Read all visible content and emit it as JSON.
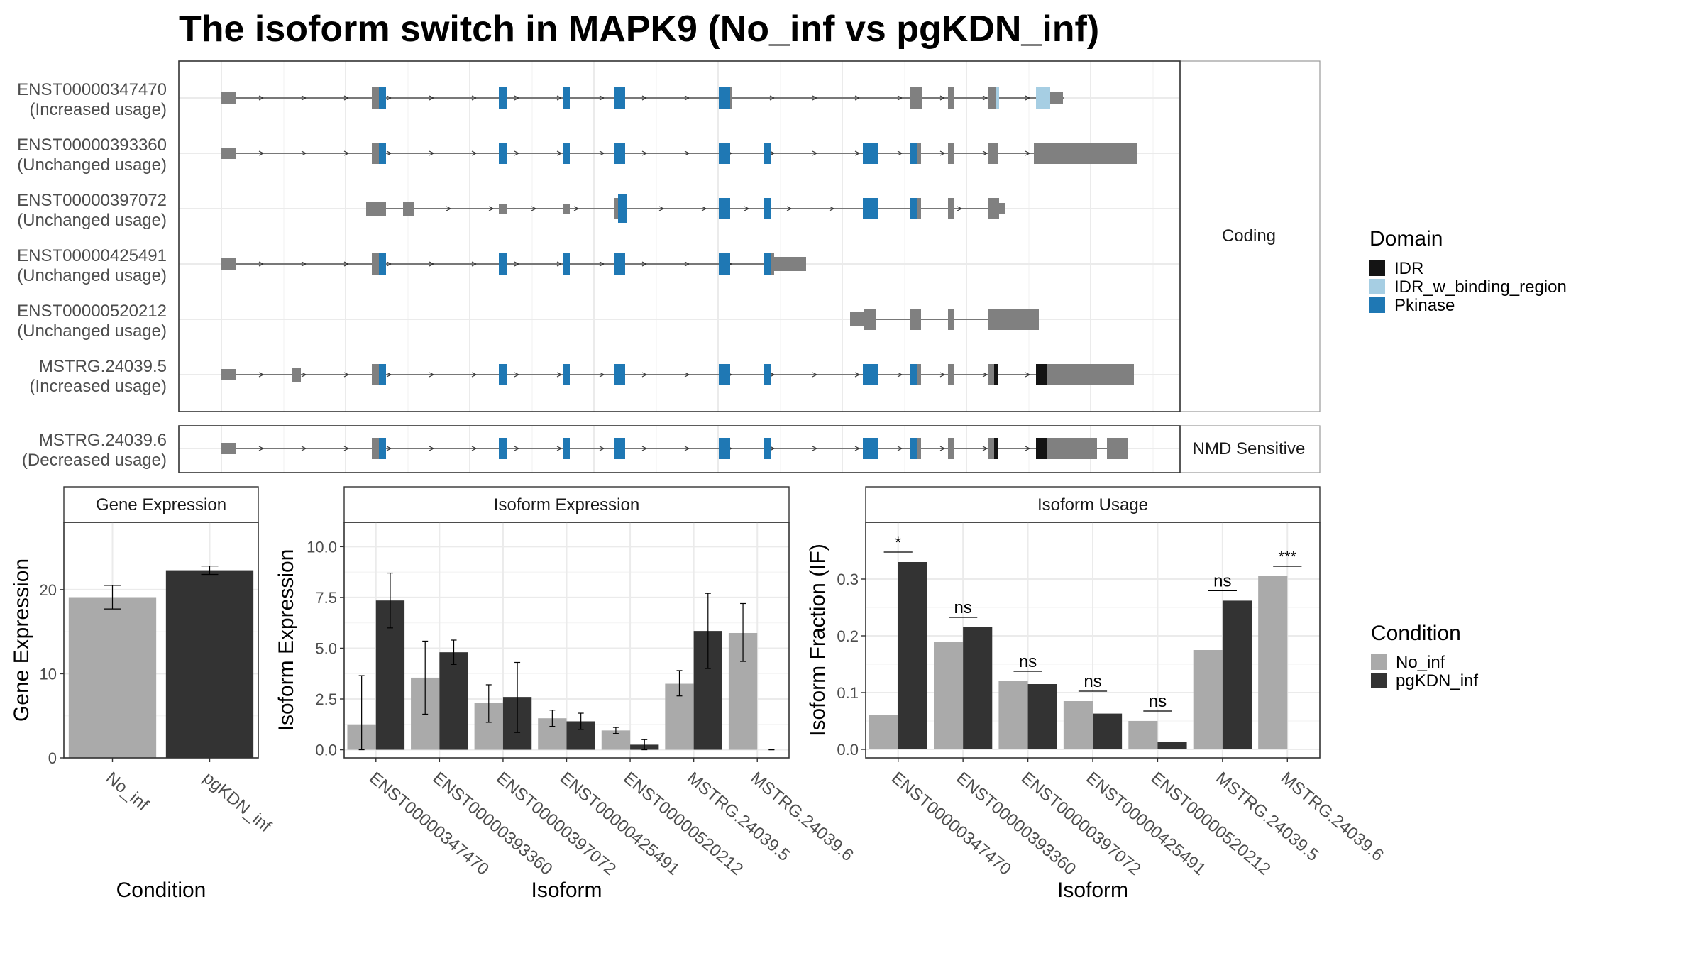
{
  "title": "The isoform switch in MAPK9 (No_inf vs pgKDN_inf)",
  "colors": {
    "grey_exon": "#808080",
    "pkinase": "#1F78B4",
    "idr_binding": "#A6CEE3",
    "idr": "#141414",
    "no_inf": "#AAAAAA",
    "pgkdn_inf": "#333333",
    "grid": "#EBEBEB",
    "panel_border": "#333333",
    "strip_bg": "#FFFFFF"
  },
  "structure": {
    "facets": [
      "Coding",
      "NMD Sensitive"
    ],
    "domain_legend_title": "Domain",
    "domains": [
      {
        "name": "IDR",
        "color": "#141414"
      },
      {
        "name": "IDR_w_binding_region",
        "color": "#A6CEE3"
      },
      {
        "name": "Pkinase",
        "color": "#1F78B4"
      }
    ],
    "isoforms": [
      {
        "id": "ENST00000347470",
        "status": "(Increased usage)",
        "facet": 0
      },
      {
        "id": "ENST00000393360",
        "status": "(Unchanged usage)",
        "facet": 0
      },
      {
        "id": "ENST00000397072",
        "status": "(Unchanged usage)",
        "facet": 0
      },
      {
        "id": "ENST00000425491",
        "status": "(Unchanged usage)",
        "facet": 0
      },
      {
        "id": "ENST00000520212",
        "status": "(Unchanged usage)",
        "facet": 0
      },
      {
        "id": "MSTRG.24039.5",
        "status": "(Increased usage)",
        "facet": 0
      },
      {
        "id": "MSTRG.24039.6",
        "status": "(Decreased usage)",
        "facet": 1
      }
    ]
  },
  "chart_data": [
    {
      "type": "bar",
      "strip": "Gene Expression",
      "xlabel": "Condition",
      "ylabel": "Gene Expression",
      "categories": [
        "No_inf",
        "pgKDN_inf"
      ],
      "values": [
        19.1,
        22.3
      ],
      "err_low": [
        17.7,
        21.8
      ],
      "err_high": [
        20.5,
        22.8
      ],
      "ylim": [
        0,
        28
      ],
      "yticks": [
        0,
        10,
        20
      ]
    },
    {
      "type": "bar",
      "strip": "Isoform Expression",
      "xlabel": "Isoform",
      "ylabel": "Isoform Expression",
      "categories": [
        "ENST00000347470",
        "ENST00000393360",
        "ENST00000397072",
        "ENST00000425491",
        "ENST00000520212",
        "MSTRG.24039.5",
        "MSTRG.24039.6"
      ],
      "series": [
        {
          "name": "No_inf",
          "values": [
            1.25,
            3.55,
            2.3,
            1.55,
            0.95,
            3.25,
            5.75
          ],
          "err_low": [
            0.0,
            1.75,
            1.35,
            1.15,
            0.8,
            2.65,
            4.35
          ],
          "err_high": [
            3.65,
            5.35,
            3.2,
            1.95,
            1.1,
            3.9,
            7.2
          ]
        },
        {
          "name": "pgKDN_inf",
          "values": [
            7.35,
            4.8,
            2.6,
            1.4,
            0.25,
            5.85,
            0.0
          ],
          "err_low": [
            6.0,
            4.2,
            0.85,
            1.0,
            0.0,
            4.0,
            0.0
          ],
          "err_high": [
            8.7,
            5.4,
            4.3,
            1.8,
            0.5,
            7.7,
            0.0
          ]
        }
      ],
      "ylim": [
        -0.4,
        11.2
      ],
      "yticks": [
        "0.0",
        "2.5",
        "5.0",
        "7.5",
        "10.0"
      ]
    },
    {
      "type": "bar",
      "strip": "Isoform Usage",
      "xlabel": "Isoform",
      "ylabel": "Isoform Fraction (IF)",
      "categories": [
        "ENST00000347470",
        "ENST00000393360",
        "ENST00000397072",
        "ENST00000425491",
        "ENST00000520212",
        "MSTRG.24039.5",
        "MSTRG.24039.6"
      ],
      "series": [
        {
          "name": "No_inf",
          "values": [
            0.06,
            0.19,
            0.12,
            0.085,
            0.05,
            0.175,
            0.305
          ]
        },
        {
          "name": "pgKDN_inf",
          "values": [
            0.33,
            0.215,
            0.115,
            0.063,
            0.013,
            0.262,
            0.0
          ]
        }
      ],
      "significance": [
        "*",
        "ns",
        "ns",
        "ns",
        "ns",
        "ns",
        "***"
      ],
      "ylim": [
        -0.015,
        0.4
      ],
      "yticks": [
        "0.0",
        "0.1",
        "0.2",
        "0.3"
      ]
    }
  ],
  "condition_legend": {
    "title": "Condition",
    "items": [
      {
        "name": "No_inf",
        "color": "#AAAAAA"
      },
      {
        "name": "pgKDN_inf",
        "color": "#333333"
      }
    ]
  }
}
